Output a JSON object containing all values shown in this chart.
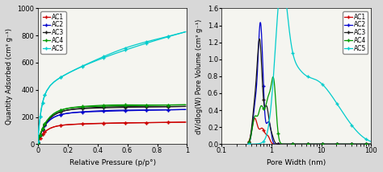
{
  "left": {
    "xlabel": "Relative Pressure (p/p°)",
    "ylabel": "Quantity Adsorbed (cm³ g⁻¹)",
    "ylim": [
      0,
      1000
    ],
    "xlim": [
      0,
      1.0
    ],
    "yticks": [
      0,
      200,
      400,
      600,
      800,
      1000
    ],
    "xticks": [
      0,
      0.2,
      0.4,
      0.6,
      0.8,
      1.0
    ],
    "xtick_labels": [
      "0",
      "0.2",
      "0.4",
      "0.6",
      "0.8",
      "1"
    ]
  },
  "right": {
    "xlabel": "Pore Width (nm)",
    "ylabel": "dV/dlog(W) Pore Volume (cm³ g⁻¹)",
    "ylim": [
      0,
      1.6
    ],
    "xlim_log": [
      0.1,
      100
    ],
    "yticks": [
      0,
      0.2,
      0.4,
      0.6,
      0.8,
      1.0,
      1.2,
      1.4,
      1.6
    ]
  },
  "legend_labels": [
    "AC1",
    "AC2",
    "AC3",
    "AC4",
    "AC5"
  ],
  "legend_colors": [
    "#cc0000",
    "#0000cc",
    "#1a1a1a",
    "#009900",
    "#00cccc"
  ],
  "background_color": "#d8d8d8",
  "plot_bg": "#f5f5f0"
}
